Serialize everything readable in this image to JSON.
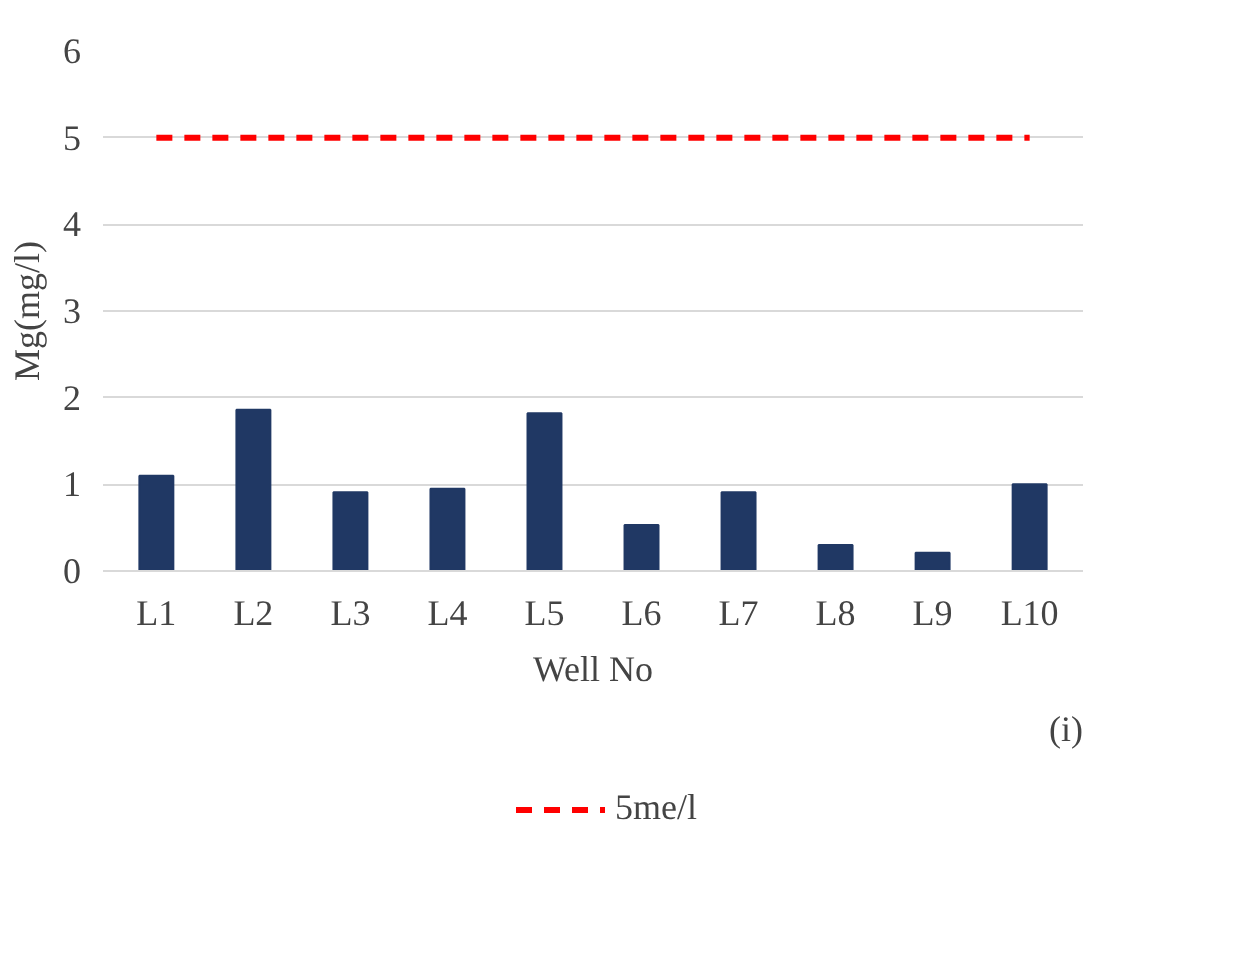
{
  "chart_data": {
    "type": "bar",
    "xlabel": "Well No",
    "ylabel": "Mg(mg/l)",
    "categories": [
      "L1",
      "L2",
      "L3",
      "L4",
      "L5",
      "L6",
      "L7",
      "L8",
      "L9",
      "L10"
    ],
    "series": [
      {
        "color": "#203864",
        "values": [
          1.1,
          1.86,
          0.91,
          0.95,
          1.82,
          0.53,
          0.91,
          0.3,
          0.21,
          1.0
        ]
      },
      {
        "type": "line",
        "name": "5me/l",
        "color": "#ff0000",
        "line_style": "dashed",
        "values": [
          5,
          5,
          5,
          5,
          5,
          5,
          5,
          5,
          5,
          5
        ]
      }
    ],
    "ylim": [
      0,
      6
    ],
    "yticks": [
      0,
      1,
      2,
      3,
      4,
      5,
      6
    ],
    "grid": "y",
    "legend": "bottom",
    "annotations": [
      "(i)"
    ]
  }
}
